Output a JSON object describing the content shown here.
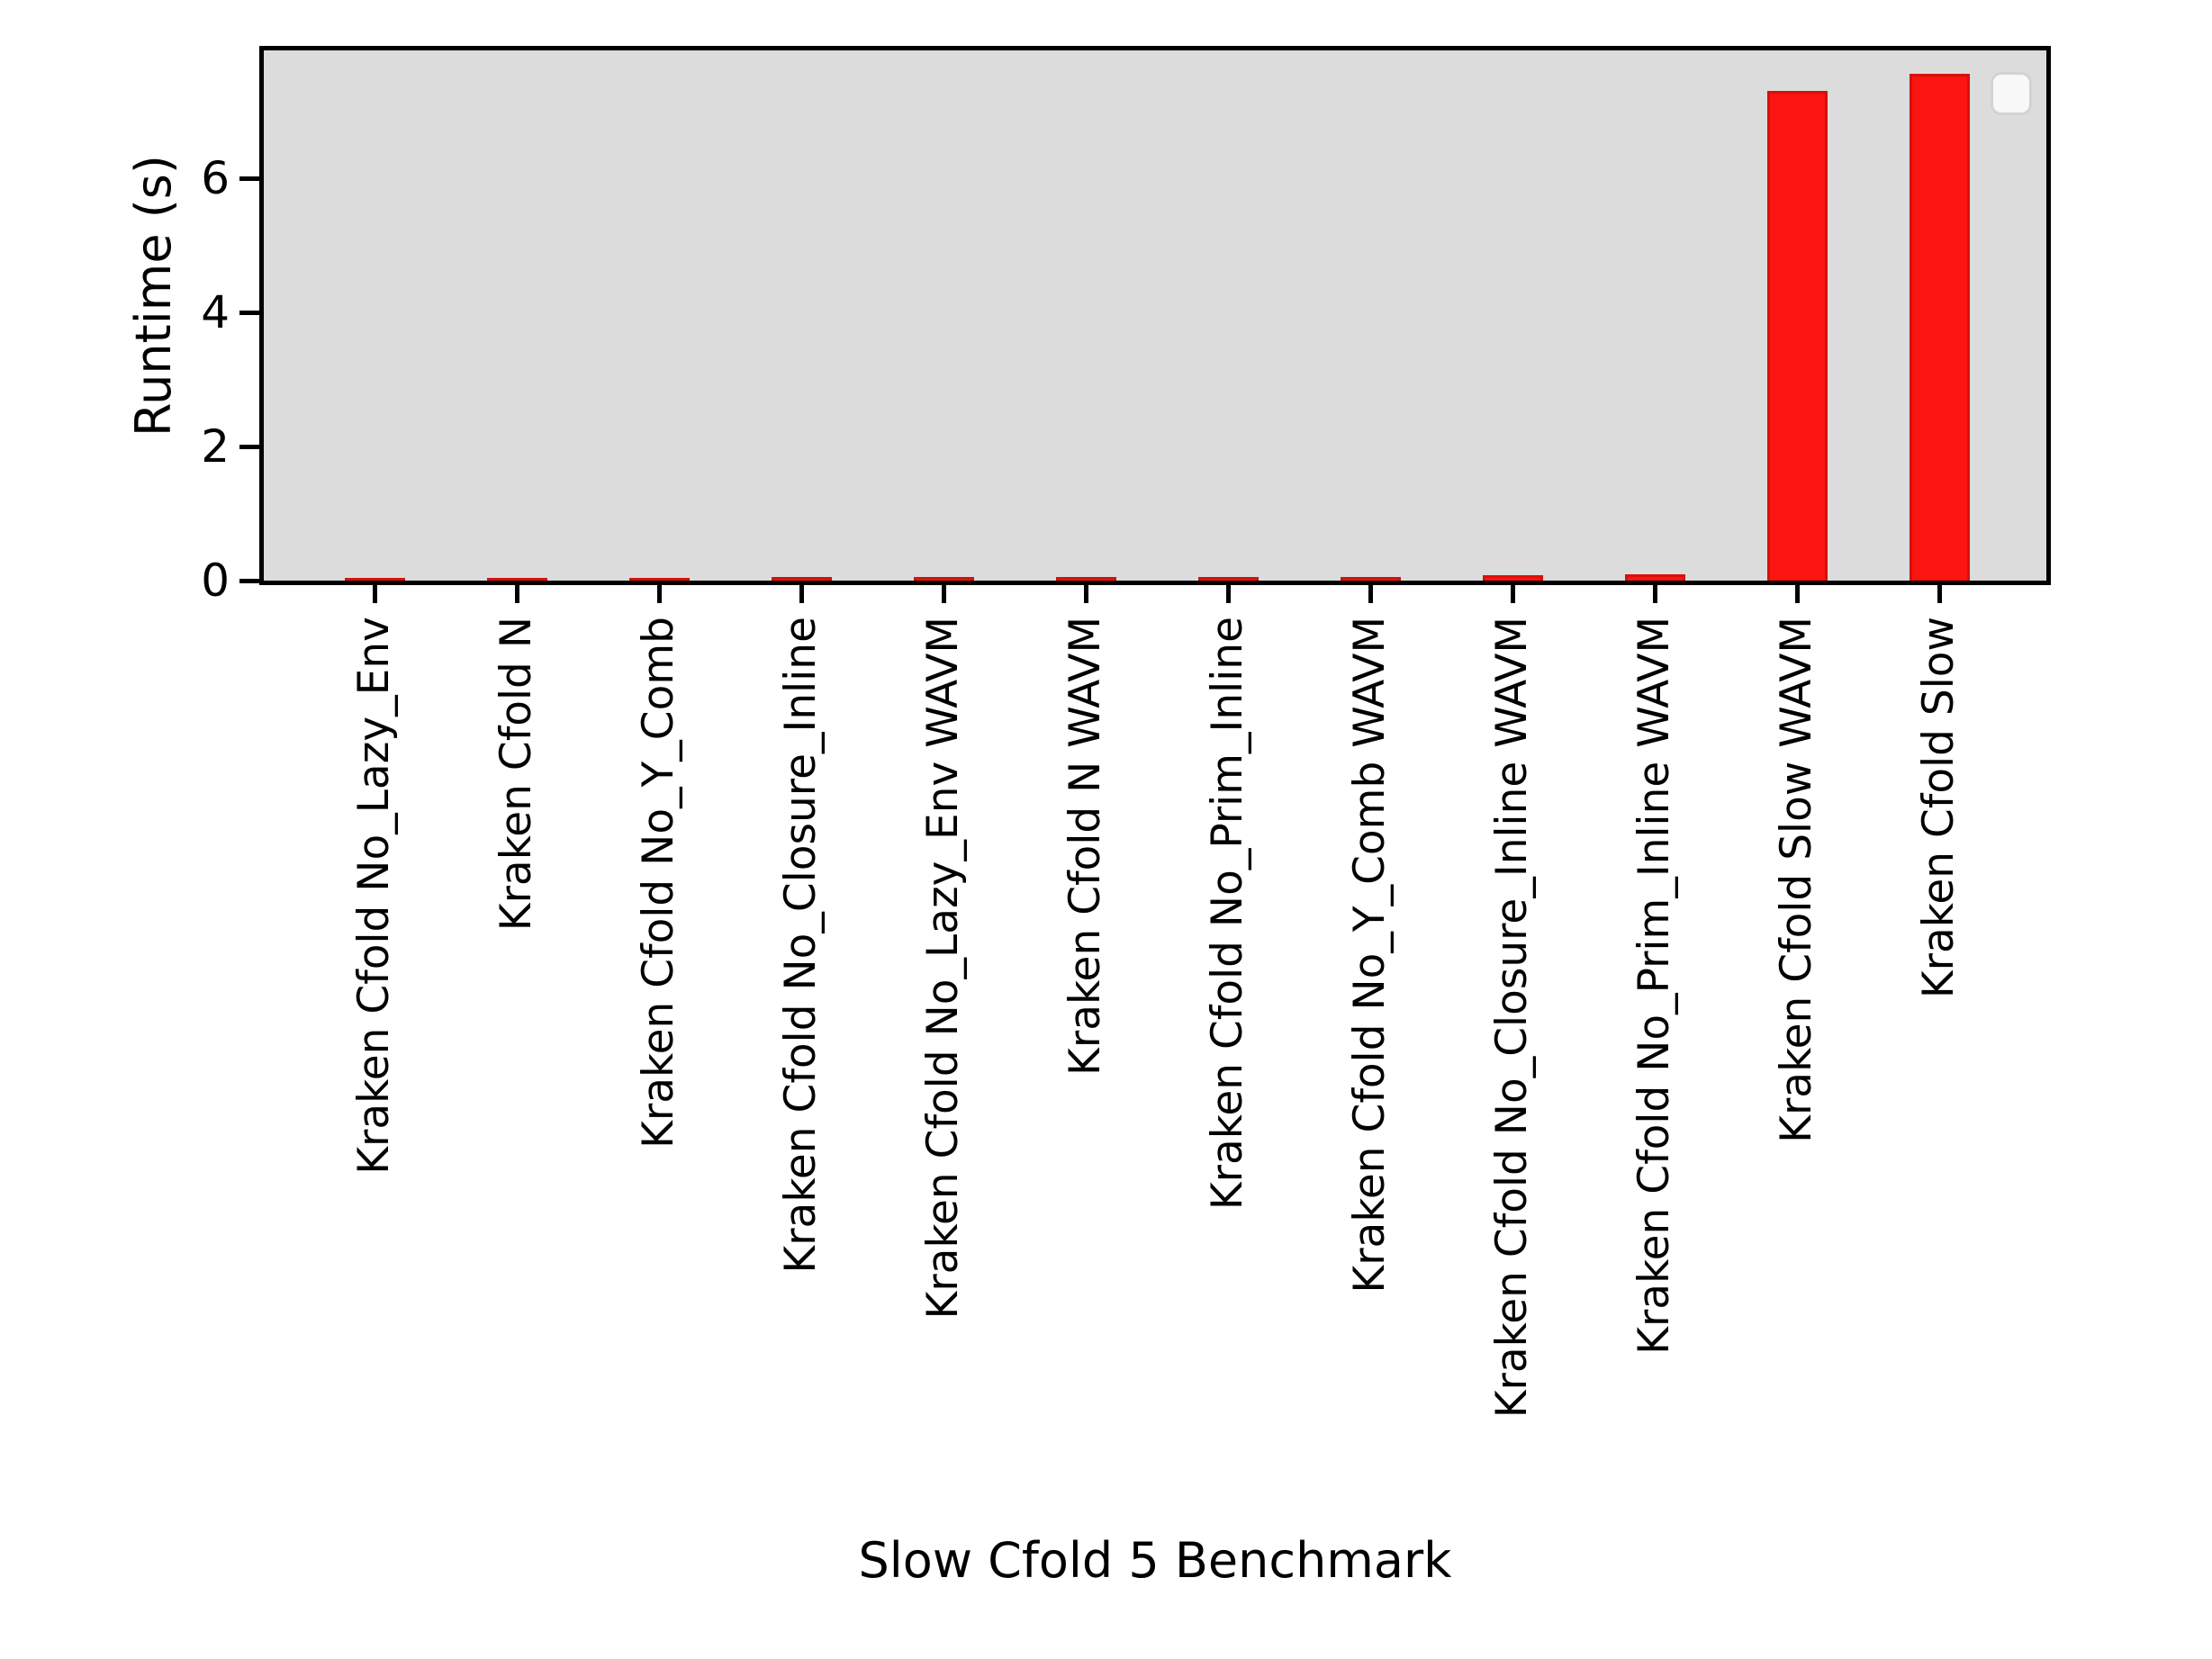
{
  "chart_data": {
    "type": "bar",
    "title": "",
    "xlabel": "Slow Cfold 5 Benchmark",
    "ylabel": "Runtime (s)",
    "categories": [
      "Kraken Cfold No_Lazy_Env",
      "Kraken Cfold N",
      "Kraken Cfold No_Y_Comb",
      "Kraken Cfold No_Closure_Inline",
      "Kraken Cfold No_Lazy_Env WAVM",
      "Kraken Cfold N WAVM",
      "Kraken Cfold No_Prim_Inline",
      "Kraken Cfold No_Y_Comb WAVM",
      "Kraken Cfold No_Closure_Inline WAVM",
      "Kraken Cfold No_Prim_Inline WAVM",
      "Kraken Cfold Slow WAVM",
      "Kraken Cfold Slow"
    ],
    "values": [
      0.04,
      0.04,
      0.04,
      0.05,
      0.05,
      0.05,
      0.06,
      0.06,
      0.08,
      0.1,
      7.3,
      7.55
    ],
    "yticks": [
      0,
      2,
      4,
      6
    ],
    "ylim": [
      0,
      7.9
    ],
    "grid": false,
    "legend": {
      "visible": true,
      "position": "upper right",
      "entries": []
    },
    "colors": {
      "bar_fill": "#fa1510",
      "bar_edge": "#d6100b",
      "plot_background": "#dcdcdc",
      "figure_background": "#ffffff",
      "axis": "#000000"
    }
  }
}
